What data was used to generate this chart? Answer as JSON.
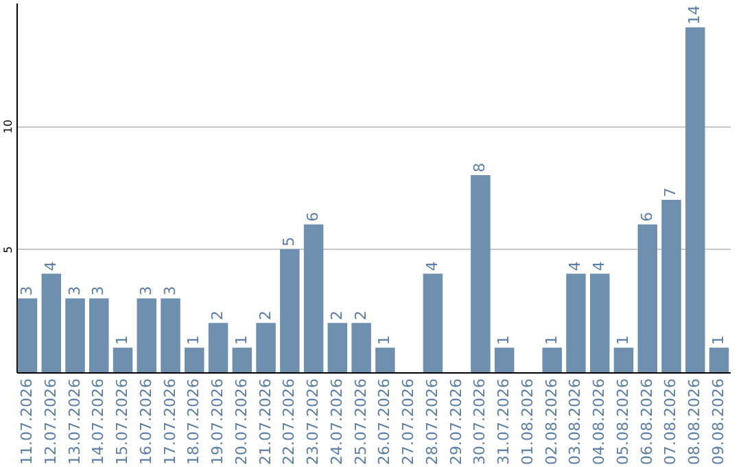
{
  "chart_data": {
    "type": "bar",
    "categories": [
      "11.07.2026",
      "12.07.2026",
      "13.07.2026",
      "14.07.2026",
      "15.07.2026",
      "16.07.2026",
      "17.07.2026",
      "18.07.2026",
      "19.07.2026",
      "20.07.2026",
      "21.07.2026",
      "22.07.2026",
      "23.07.2026",
      "24.07.2026",
      "25.07.2026",
      "26.07.2026",
      "27.07.2026",
      "28.07.2026",
      "29.07.2026",
      "30.07.2026",
      "31.07.2026",
      "01.08.2026",
      "02.08.2026",
      "03.08.2026",
      "04.08.2026",
      "05.08.2026",
      "06.08.2026",
      "07.08.2026",
      "08.08.2026",
      "09.08.2026"
    ],
    "values": [
      3,
      4,
      3,
      3,
      1,
      3,
      3,
      1,
      2,
      1,
      2,
      5,
      6,
      2,
      2,
      1,
      0,
      4,
      0,
      8,
      1,
      0,
      1,
      4,
      4,
      1,
      6,
      7,
      14,
      1
    ],
    "value_labels": [
      "3",
      "4",
      "3",
      "3",
      "1",
      "3",
      "3",
      "1",
      "2",
      "1",
      "2",
      "5",
      "6",
      "2",
      "2",
      "1",
      null,
      "4",
      null,
      "8",
      "1",
      null,
      "1",
      "4",
      "4",
      "1",
      "6",
      "7",
      "14",
      "1"
    ],
    "color": "#6f8fae",
    "ylim": [
      0,
      15
    ],
    "yticks": [
      5,
      10
    ],
    "grid": "y"
  }
}
